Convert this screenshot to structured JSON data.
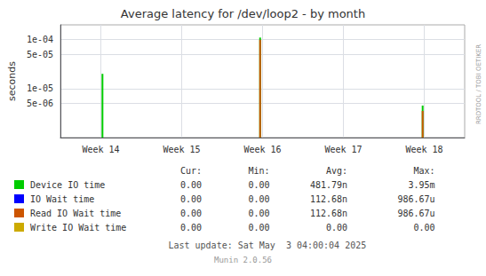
{
  "chart_data": {
    "type": "spike",
    "title": "Average latency for /dev/loop2 - by month",
    "ylabel": "seconds",
    "log": "y",
    "grid": true,
    "legend": "bottom",
    "xlim": [
      13.5,
      18.5
    ],
    "xticks": [
      {
        "value": 14,
        "label": "Week 14"
      },
      {
        "value": 15,
        "label": "Week 15"
      },
      {
        "value": 16,
        "label": "Week 16"
      },
      {
        "value": 17,
        "label": "Week 17"
      },
      {
        "value": 18,
        "label": "Week 18"
      }
    ],
    "ylim": [
      1e-06,
      0.0002
    ],
    "yticks": [
      {
        "value": 5e-06,
        "label": "5e-06"
      },
      {
        "value": 1e-05,
        "label": "1e-05"
      },
      {
        "value": 5e-05,
        "label": "5e-05"
      },
      {
        "value": 0.0001,
        "label": "1e-04"
      }
    ],
    "table_headers": [
      "Cur:",
      "Min:",
      "Avg:",
      "Max:"
    ],
    "series": [
      {
        "name": "Device IO time",
        "color": "#00cc00",
        "x": [
          14.02,
          15.97,
          17.98
        ],
        "values": [
          2e-05,
          0.00011,
          4.5e-06
        ],
        "bottoms": [
          1e-06,
          1e-06,
          1e-06
        ],
        "table_values": [
          "0.00",
          "0.00",
          "481.79n",
          "3.95m"
        ]
      },
      {
        "name": "IO Wait time",
        "color": "#0000ff",
        "x": [],
        "values": [],
        "bottoms": [],
        "table_values": [
          "0.00",
          "0.00",
          "112.68n",
          "986.67u"
        ]
      },
      {
        "name": "Read IO Wait time",
        "color": "#cc5500",
        "x": [
          15.97,
          17.98
        ],
        "values": [
          9.9e-05,
          3.5e-06
        ],
        "bottoms": [
          1e-06,
          1e-06
        ],
        "table_values": [
          "0.00",
          "0.00",
          "112.68n",
          "986.67u"
        ]
      },
      {
        "name": "Write IO Wait time",
        "color": "#ccaa00",
        "x": [],
        "values": [],
        "bottoms": [],
        "table_values": [
          "0.00",
          "0.00",
          "0.00",
          "0.00"
        ]
      }
    ],
    "annotations": {
      "footer": "Last update: Sat May  3 04:00:04 2025",
      "version": "Munin 2.0.56",
      "watermark": "RRDTOOL / TOBI OETIKER"
    }
  }
}
